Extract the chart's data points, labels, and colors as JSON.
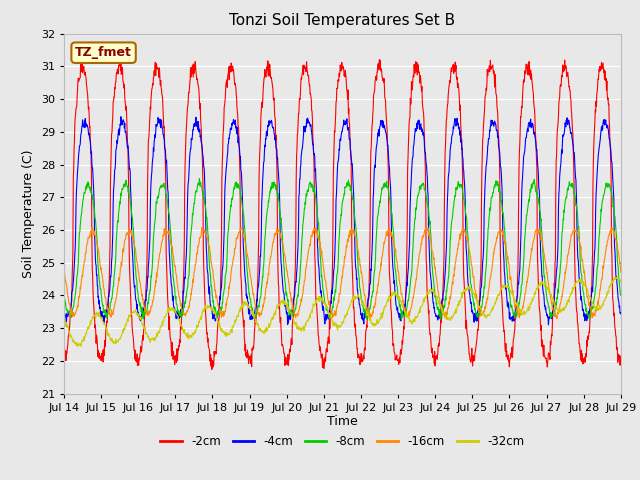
{
  "title": "Tonzi Soil Temperatures Set B",
  "xlabel": "Time",
  "ylabel": "Soil Temperature (C)",
  "ylim": [
    21.0,
    32.0
  ],
  "yticks": [
    21.0,
    22.0,
    23.0,
    24.0,
    25.0,
    26.0,
    27.0,
    28.0,
    29.0,
    30.0,
    31.0,
    32.0
  ],
  "line_colors": {
    "-2cm": "#ff0000",
    "-4cm": "#0000ff",
    "-8cm": "#00cc00",
    "-16cm": "#ff8800",
    "-32cm": "#cccc00"
  },
  "legend_labels": [
    "-2cm",
    "-4cm",
    "-8cm",
    "-16cm",
    "-32cm"
  ],
  "annotation_text": "TZ_fmet",
  "annotation_bg": "#ffffcc",
  "annotation_border": "#aa6600",
  "plot_bg": "#e8e8e8",
  "n_days": 15,
  "start_day": 14,
  "points_per_day": 96
}
